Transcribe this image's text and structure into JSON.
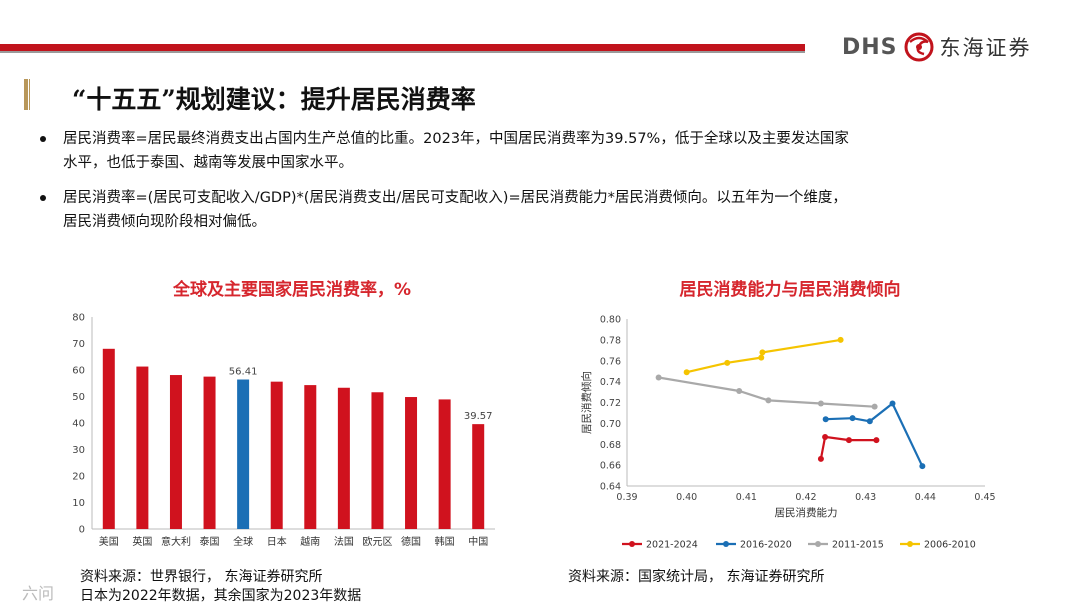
{
  "brand": {
    "latin": "DHS",
    "chinese": "东海证券"
  },
  "title": "“十五五”规划建议：提升居民消费率",
  "bullets": [
    {
      "line1": "居民消费率=居民最终消费支出占国内生产总值的比重。2023年，中国居民消费率为39.57%，低于全球以及主要发达国家",
      "line2": "水平，也低于泰国、越南等发展中国家水平。"
    },
    {
      "line1": "居民消费率=(居民可支配收入/GDP)*(居民消费支出/居民可支配收入)=居民消费能力*居民消费倾向。以五年为一个维度，",
      "line2": "居民消费倾向现阶段相对偏低。"
    }
  ],
  "source_left": {
    "line1": "资料来源：世界银行， 东海证券研究所",
    "line2": "日本为2022年数据，其余国家为2023年数据"
  },
  "source_right": "资料来源：国家统计局， 东海证券研究所",
  "watermark": "六问",
  "colors": {
    "red": "#d0121e",
    "blue": "#1b6fb5",
    "gray": "#a9a9a9",
    "yellow": "#f5c400",
    "title_red": "#d6262d"
  },
  "chart_data": [
    {
      "type": "bar",
      "title": "全球及主要国家居民消费率，%",
      "categories": [
        "美国",
        "英国",
        "意大利",
        "泰国",
        "全球",
        "日本",
        "越南",
        "法国",
        "欧元区",
        "德国",
        "韩国",
        "中国"
      ],
      "values": [
        68.0,
        61.3,
        58.1,
        57.5,
        56.41,
        55.6,
        54.3,
        53.3,
        51.6,
        49.8,
        48.9,
        39.57
      ],
      "highlight": {
        "全球": "blue"
      },
      "data_labels": {
        "全球": "56.41",
        "中国": "39.57"
      },
      "ylim": [
        0,
        80
      ],
      "yticks": [
        0,
        10,
        20,
        30,
        40,
        50,
        60,
        70,
        80
      ]
    },
    {
      "type": "line",
      "title": "居民消费能力与居民消费倾向",
      "xlabel": "居民消费能力",
      "ylabel": "居民消费倾向",
      "xlim": [
        0.39,
        0.45
      ],
      "ylim": [
        0.64,
        0.8
      ],
      "xticks": [
        "0.39",
        "0.40",
        "0.41",
        "0.42",
        "0.43",
        "0.44",
        "0.45"
      ],
      "yticks": [
        "0.64",
        "0.66",
        "0.68",
        "0.70",
        "0.72",
        "0.74",
        "0.76",
        "0.78",
        "0.80"
      ],
      "legend": "bottom",
      "series": [
        {
          "name": "2021-2024",
          "color": "red",
          "points": [
            [
              0.4225,
              0.666
            ],
            [
              0.4232,
              0.687
            ],
            [
              0.4272,
              0.684
            ],
            [
              0.4318,
              0.684
            ]
          ]
        },
        {
          "name": "2016-2020",
          "color": "blue",
          "points": [
            [
              0.4233,
              0.704
            ],
            [
              0.4278,
              0.705
            ],
            [
              0.4307,
              0.702
            ],
            [
              0.4345,
              0.719
            ],
            [
              0.4395,
              0.659
            ]
          ]
        },
        {
          "name": "2011-2015",
          "color": "gray",
          "points": [
            [
              0.3953,
              0.744
            ],
            [
              0.4088,
              0.731
            ],
            [
              0.4137,
              0.722
            ],
            [
              0.4225,
              0.719
            ],
            [
              0.4315,
              0.716
            ]
          ]
        },
        {
          "name": "2006-2010",
          "color": "yellow",
          "points": [
            [
              0.4,
              0.749
            ],
            [
              0.4068,
              0.758
            ],
            [
              0.4125,
              0.763
            ],
            [
              0.4127,
              0.768
            ],
            [
              0.4258,
              0.78
            ]
          ]
        }
      ]
    }
  ]
}
